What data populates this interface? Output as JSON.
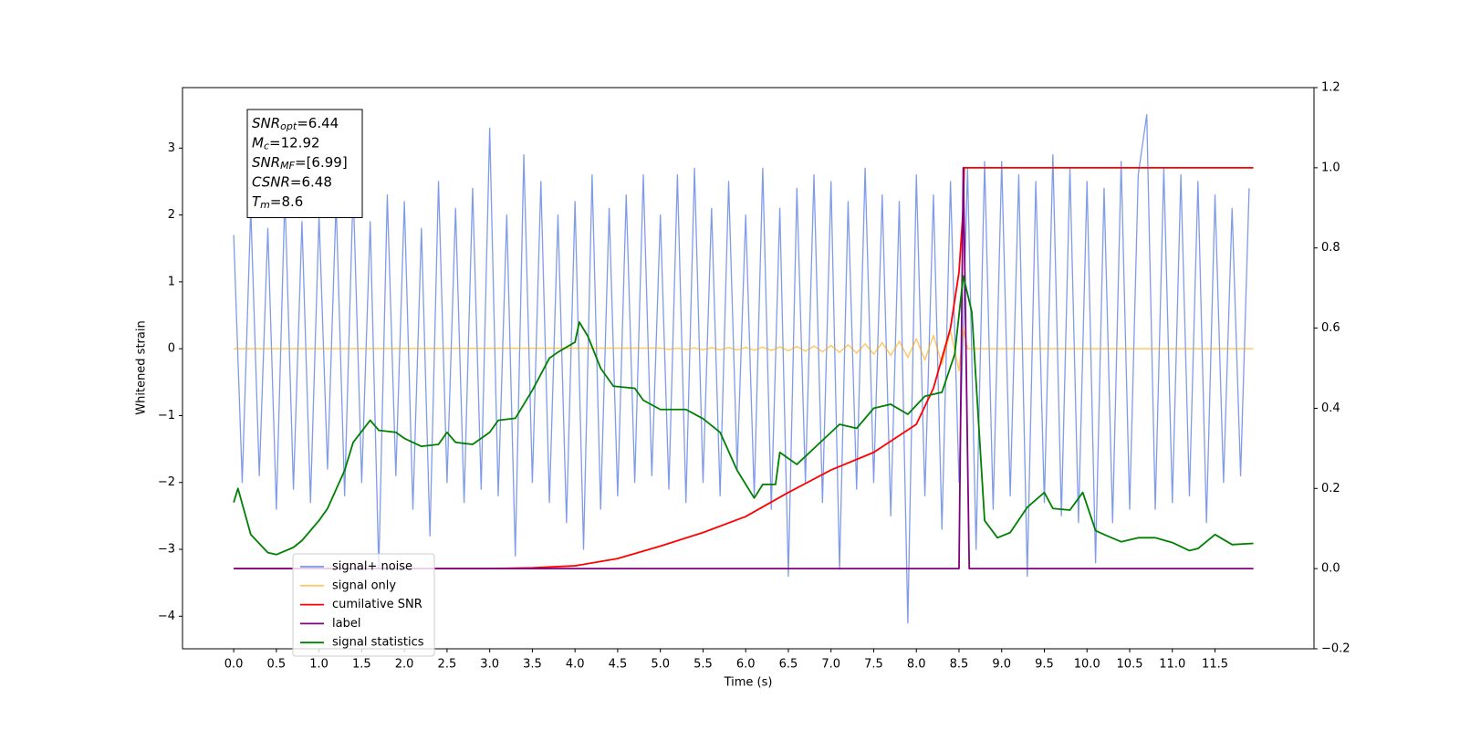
{
  "chart_data": {
    "type": "line",
    "xlabel": "Time (s)",
    "ylabel": "Whitened strain",
    "xlim": [
      -0.6,
      12.66
    ],
    "ylim": [
      -4.487,
      3.905
    ],
    "y2lim": [
      -0.2,
      1.2
    ],
    "xticks": [
      {
        "value": 0,
        "label": "0.0"
      },
      0.5,
      {
        "value": 1,
        "label": "1.0"
      },
      1.5,
      {
        "value": 2,
        "label": "2.0"
      },
      2.5,
      {
        "value": 3,
        "label": "3.0"
      },
      3.5,
      {
        "value": 4,
        "label": "4.0"
      },
      4.5,
      {
        "value": 5,
        "label": "5.0"
      },
      5.5,
      {
        "value": 6,
        "label": "6.0"
      },
      6.5,
      {
        "value": 7,
        "label": "7.0"
      },
      7.5,
      {
        "value": 8,
        "label": "8.0"
      },
      8.5,
      {
        "value": 9,
        "label": "9.0"
      },
      9.5,
      {
        "value": 10,
        "label": "10.0"
      },
      10.5,
      {
        "value": 11,
        "label": "11.0"
      },
      11.5
    ],
    "yticks": [
      {
        "value": -4,
        "label": "−4"
      },
      {
        "value": -3,
        "label": "−3"
      },
      {
        "value": -2,
        "label": "−2"
      },
      {
        "value": -1,
        "label": "−1"
      },
      0,
      1,
      2,
      3
    ],
    "y2ticks": [
      {
        "value": -0.2,
        "label": "−0.2"
      },
      {
        "value": 0,
        "label": "0.0"
      },
      0.2,
      0.4,
      0.6,
      0.8,
      {
        "value": 1,
        "label": "1.0"
      },
      1.2
    ],
    "legend_loc": "lower left",
    "annotation": [
      {
        "symbol": "SNR",
        "sub": "opt",
        "text": "=6.44"
      },
      {
        "symbol": "M",
        "sub": "c",
        "text": "=12.92"
      },
      {
        "symbol": "SNR",
        "sub": "MF",
        "text": "=[6.99]"
      },
      {
        "symbol": "CSNR",
        "text": "=6.48"
      },
      {
        "symbol": "T",
        "sub": "m",
        "text": "=8.6"
      }
    ],
    "series": [
      {
        "name": "signal+ noise",
        "color": "#7896e8",
        "axis": "y",
        "x": [
          0,
          0.1,
          0.2,
          0.3,
          0.4,
          0.5,
          0.6,
          0.7,
          0.8,
          0.9,
          1,
          1.1,
          1.2,
          1.3,
          1.4,
          1.5,
          1.6,
          1.7,
          1.8,
          1.9,
          2,
          2.1,
          2.2,
          2.3,
          2.4,
          2.5,
          2.6,
          2.7,
          2.8,
          2.9,
          3,
          3.1,
          3.2,
          3.3,
          3.4,
          3.5,
          3.6,
          3.7,
          3.8,
          3.9,
          4,
          4.1,
          4.2,
          4.3,
          4.4,
          4.5,
          4.6,
          4.7,
          4.8,
          4.9,
          5,
          5.1,
          5.2,
          5.3,
          5.4,
          5.5,
          5.6,
          5.7,
          5.8,
          5.9,
          6,
          6.1,
          6.2,
          6.3,
          6.4,
          6.5,
          6.6,
          6.7,
          6.8,
          6.9,
          7,
          7.1,
          7.2,
          7.3,
          7.4,
          7.5,
          7.6,
          7.7,
          7.8,
          7.9,
          8,
          8.1,
          8.2,
          8.3,
          8.4,
          8.5,
          8.6,
          8.7,
          8.8,
          8.9,
          9,
          9.1,
          9.2,
          9.3,
          9.4,
          9.5,
          9.6,
          9.7,
          9.8,
          9.9,
          10,
          10.1,
          10.2,
          10.3,
          10.4,
          10.5,
          10.6,
          10.7,
          10.8,
          10.9,
          11,
          11.1,
          11.2,
          11.3,
          11.4,
          11.5,
          11.6,
          11.7,
          11.8,
          11.9
        ],
        "values": [
          1.7,
          -2.0,
          2.1,
          -1.9,
          1.8,
          -2.4,
          2.3,
          -2.1,
          1.9,
          -2.3,
          2.0,
          -1.8,
          2.2,
          -2.2,
          2.4,
          -2.0,
          1.9,
          -3.3,
          2.3,
          -1.9,
          2.2,
          -2.4,
          1.8,
          -2.8,
          2.5,
          -2.0,
          2.1,
          -2.3,
          2.4,
          -2.1,
          3.3,
          -2.2,
          2.0,
          -3.1,
          2.9,
          -2.0,
          2.5,
          -2.3,
          2.0,
          -2.6,
          2.2,
          -3.0,
          2.6,
          -2.4,
          2.1,
          -2.2,
          2.3,
          -2.0,
          2.6,
          -1.9,
          2.0,
          -2.1,
          2.6,
          -2.3,
          2.7,
          -2.0,
          2.1,
          -2.2,
          2.5,
          -1.8,
          2.0,
          -2.2,
          2.7,
          -2.4,
          2.1,
          -3.4,
          2.4,
          -2.0,
          2.6,
          -2.3,
          2.5,
          -3.3,
          2.2,
          -2.1,
          2.7,
          -2.0,
          2.3,
          -2.5,
          2.2,
          -4.1,
          2.6,
          -2.2,
          2.3,
          -2.7,
          2.5,
          -2.0,
          2.7,
          -3.0,
          2.8,
          -2.4,
          2.8,
          -2.2,
          2.6,
          -3.4,
          2.5,
          -2.3,
          2.9,
          -2.5,
          2.7,
          -2.6,
          2.5,
          -3.2,
          2.4,
          -2.6,
          2.8,
          -2.4,
          2.6,
          3.5,
          -2.4,
          2.7,
          -2.3,
          2.6,
          -2.2,
          2.5,
          -2.6,
          2.3,
          -2.0,
          2.1,
          -1.9,
          2.4
        ]
      },
      {
        "name": "signal only",
        "color": "#ffa500",
        "axis": "y",
        "x": [
          0,
          5.0,
          5.1,
          5.2,
          5.3,
          5.4,
          5.5,
          5.6,
          5.7,
          5.8,
          5.9,
          6.0,
          6.1,
          6.2,
          6.3,
          6.4,
          6.5,
          6.6,
          6.7,
          6.8,
          6.9,
          7.0,
          7.1,
          7.2,
          7.3,
          7.4,
          7.5,
          7.6,
          7.7,
          7.8,
          7.9,
          8.0,
          8.1,
          8.2,
          8.3,
          8.4,
          8.5,
          8.55,
          8.6,
          11.95
        ],
        "values": [
          0,
          0.01,
          -0.01,
          0.01,
          -0.012,
          0.013,
          -0.015,
          0.016,
          -0.017,
          0.018,
          -0.019,
          0.02,
          -0.022,
          0.024,
          -0.026,
          0.028,
          -0.03,
          0.034,
          -0.038,
          0.042,
          -0.046,
          0.05,
          -0.055,
          0.06,
          -0.066,
          0.072,
          -0.08,
          0.09,
          -0.1,
          0.11,
          -0.13,
          0.15,
          -0.17,
          0.2,
          -0.23,
          0.27,
          -0.33,
          0.3,
          0,
          0
        ]
      },
      {
        "name": "cumilative SNR",
        "color": "#ff0000",
        "axis": "y2",
        "x": [
          0,
          3.0,
          3.5,
          4.0,
          4.5,
          5.0,
          5.5,
          6.0,
          6.5,
          7.0,
          7.5,
          8.0,
          8.2,
          8.4,
          8.5,
          8.55,
          8.56,
          11.95
        ],
        "values": [
          0,
          0,
          0.002,
          0.007,
          0.025,
          0.056,
          0.09,
          0.13,
          0.19,
          0.246,
          0.29,
          0.36,
          0.45,
          0.6,
          0.74,
          0.9,
          1.0,
          1.0
        ]
      },
      {
        "name": "label",
        "color": "#800080",
        "axis": "y2",
        "x": [
          0,
          8.5,
          8.55,
          8.62,
          11.95
        ],
        "values": [
          0,
          0,
          1.0,
          0,
          0
        ]
      },
      {
        "name": "signal statistics",
        "color": "#008000",
        "axis": "y2",
        "x": [
          0,
          0.05,
          0.2,
          0.4,
          0.5,
          0.7,
          0.8,
          1.0,
          1.1,
          1.3,
          1.4,
          1.6,
          1.7,
          1.9,
          2.0,
          2.2,
          2.4,
          2.5,
          2.6,
          2.8,
          3.0,
          3.1,
          3.3,
          3.5,
          3.7,
          3.8,
          4.0,
          4.05,
          4.15,
          4.3,
          4.45,
          4.7,
          4.8,
          5.0,
          5.3,
          5.5,
          5.7,
          5.9,
          6.1,
          6.2,
          6.35,
          6.4,
          6.6,
          6.8,
          7.1,
          7.3,
          7.5,
          7.7,
          7.9,
          8.1,
          8.3,
          8.45,
          8.55,
          8.65,
          8.8,
          8.95,
          9.1,
          9.3,
          9.5,
          9.6,
          9.8,
          9.95,
          10.1,
          10.2,
          10.4,
          10.6,
          10.8,
          11.0,
          11.2,
          11.3,
          11.5,
          11.7,
          11.95
        ],
        "values": [
          0.165,
          0.2,
          0.085,
          0.04,
          0.035,
          0.053,
          0.07,
          0.12,
          0.15,
          0.245,
          0.315,
          0.37,
          0.345,
          0.34,
          0.325,
          0.305,
          0.31,
          0.34,
          0.315,
          0.31,
          0.34,
          0.37,
          0.375,
          0.445,
          0.525,
          0.54,
          0.565,
          0.615,
          0.58,
          0.5,
          0.455,
          0.45,
          0.42,
          0.397,
          0.397,
          0.374,
          0.34,
          0.245,
          0.176,
          0.21,
          0.21,
          0.29,
          0.26,
          0.3,
          0.36,
          0.35,
          0.4,
          0.41,
          0.385,
          0.43,
          0.44,
          0.535,
          0.73,
          0.64,
          0.12,
          0.077,
          0.09,
          0.153,
          0.19,
          0.15,
          0.146,
          0.19,
          0.095,
          0.085,
          0.067,
          0.077,
          0.077,
          0.065,
          0.045,
          0.05,
          0.085,
          0.06,
          0.063
        ]
      }
    ]
  }
}
